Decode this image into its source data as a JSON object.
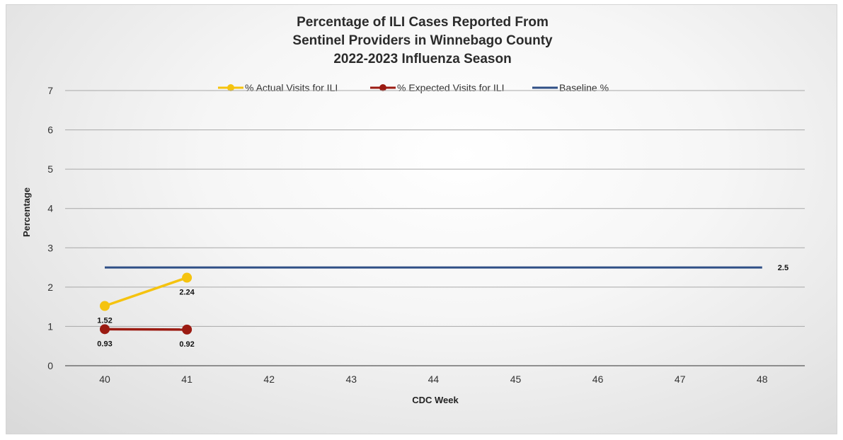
{
  "chart_data": {
    "type": "line",
    "title_lines": [
      "Percentage of ILI Cases Reported From",
      "Sentinel Providers in Winnebago County",
      "2022-2023 Influenza Season"
    ],
    "xlabel": "CDC Week",
    "ylabel": "Percentage",
    "categories": [
      "40",
      "41",
      "42",
      "43",
      "44",
      "45",
      "46",
      "47",
      "48"
    ],
    "ylim": [
      0,
      7
    ],
    "yticks": [
      "0",
      "1",
      "2",
      "3",
      "4",
      "5",
      "6",
      "7"
    ],
    "grid": "horizontal",
    "legend_position": "top",
    "series": [
      {
        "name": "% Actual Visits for ILI",
        "color": "#f5c30f",
        "marker": true,
        "values": [
          1.52,
          2.24,
          null,
          null,
          null,
          null,
          null,
          null,
          null
        ],
        "labels": [
          "1.52",
          "2.24",
          "",
          "",
          "",
          "",
          "",
          "",
          ""
        ],
        "label_position": [
          "below",
          "below"
        ]
      },
      {
        "name": "% Expected Visits for ILI",
        "color": "#9b1b12",
        "marker": true,
        "values": [
          0.93,
          0.92,
          null,
          null,
          null,
          null,
          null,
          null,
          null
        ],
        "labels": [
          "0.93",
          "0.92",
          "",
          "",
          "",
          "",
          "",
          "",
          ""
        ],
        "label_position": [
          "below",
          "below"
        ]
      },
      {
        "name": "Baseline %",
        "color": "#2f4f86",
        "marker": false,
        "values": [
          2.5,
          2.5,
          2.5,
          2.5,
          2.5,
          2.5,
          2.5,
          2.5,
          2.5
        ],
        "labels": [
          "",
          "",
          "",
          "",
          "",
          "",
          "",
          "",
          "2.5"
        ],
        "label_position": [
          "right"
        ]
      }
    ]
  }
}
